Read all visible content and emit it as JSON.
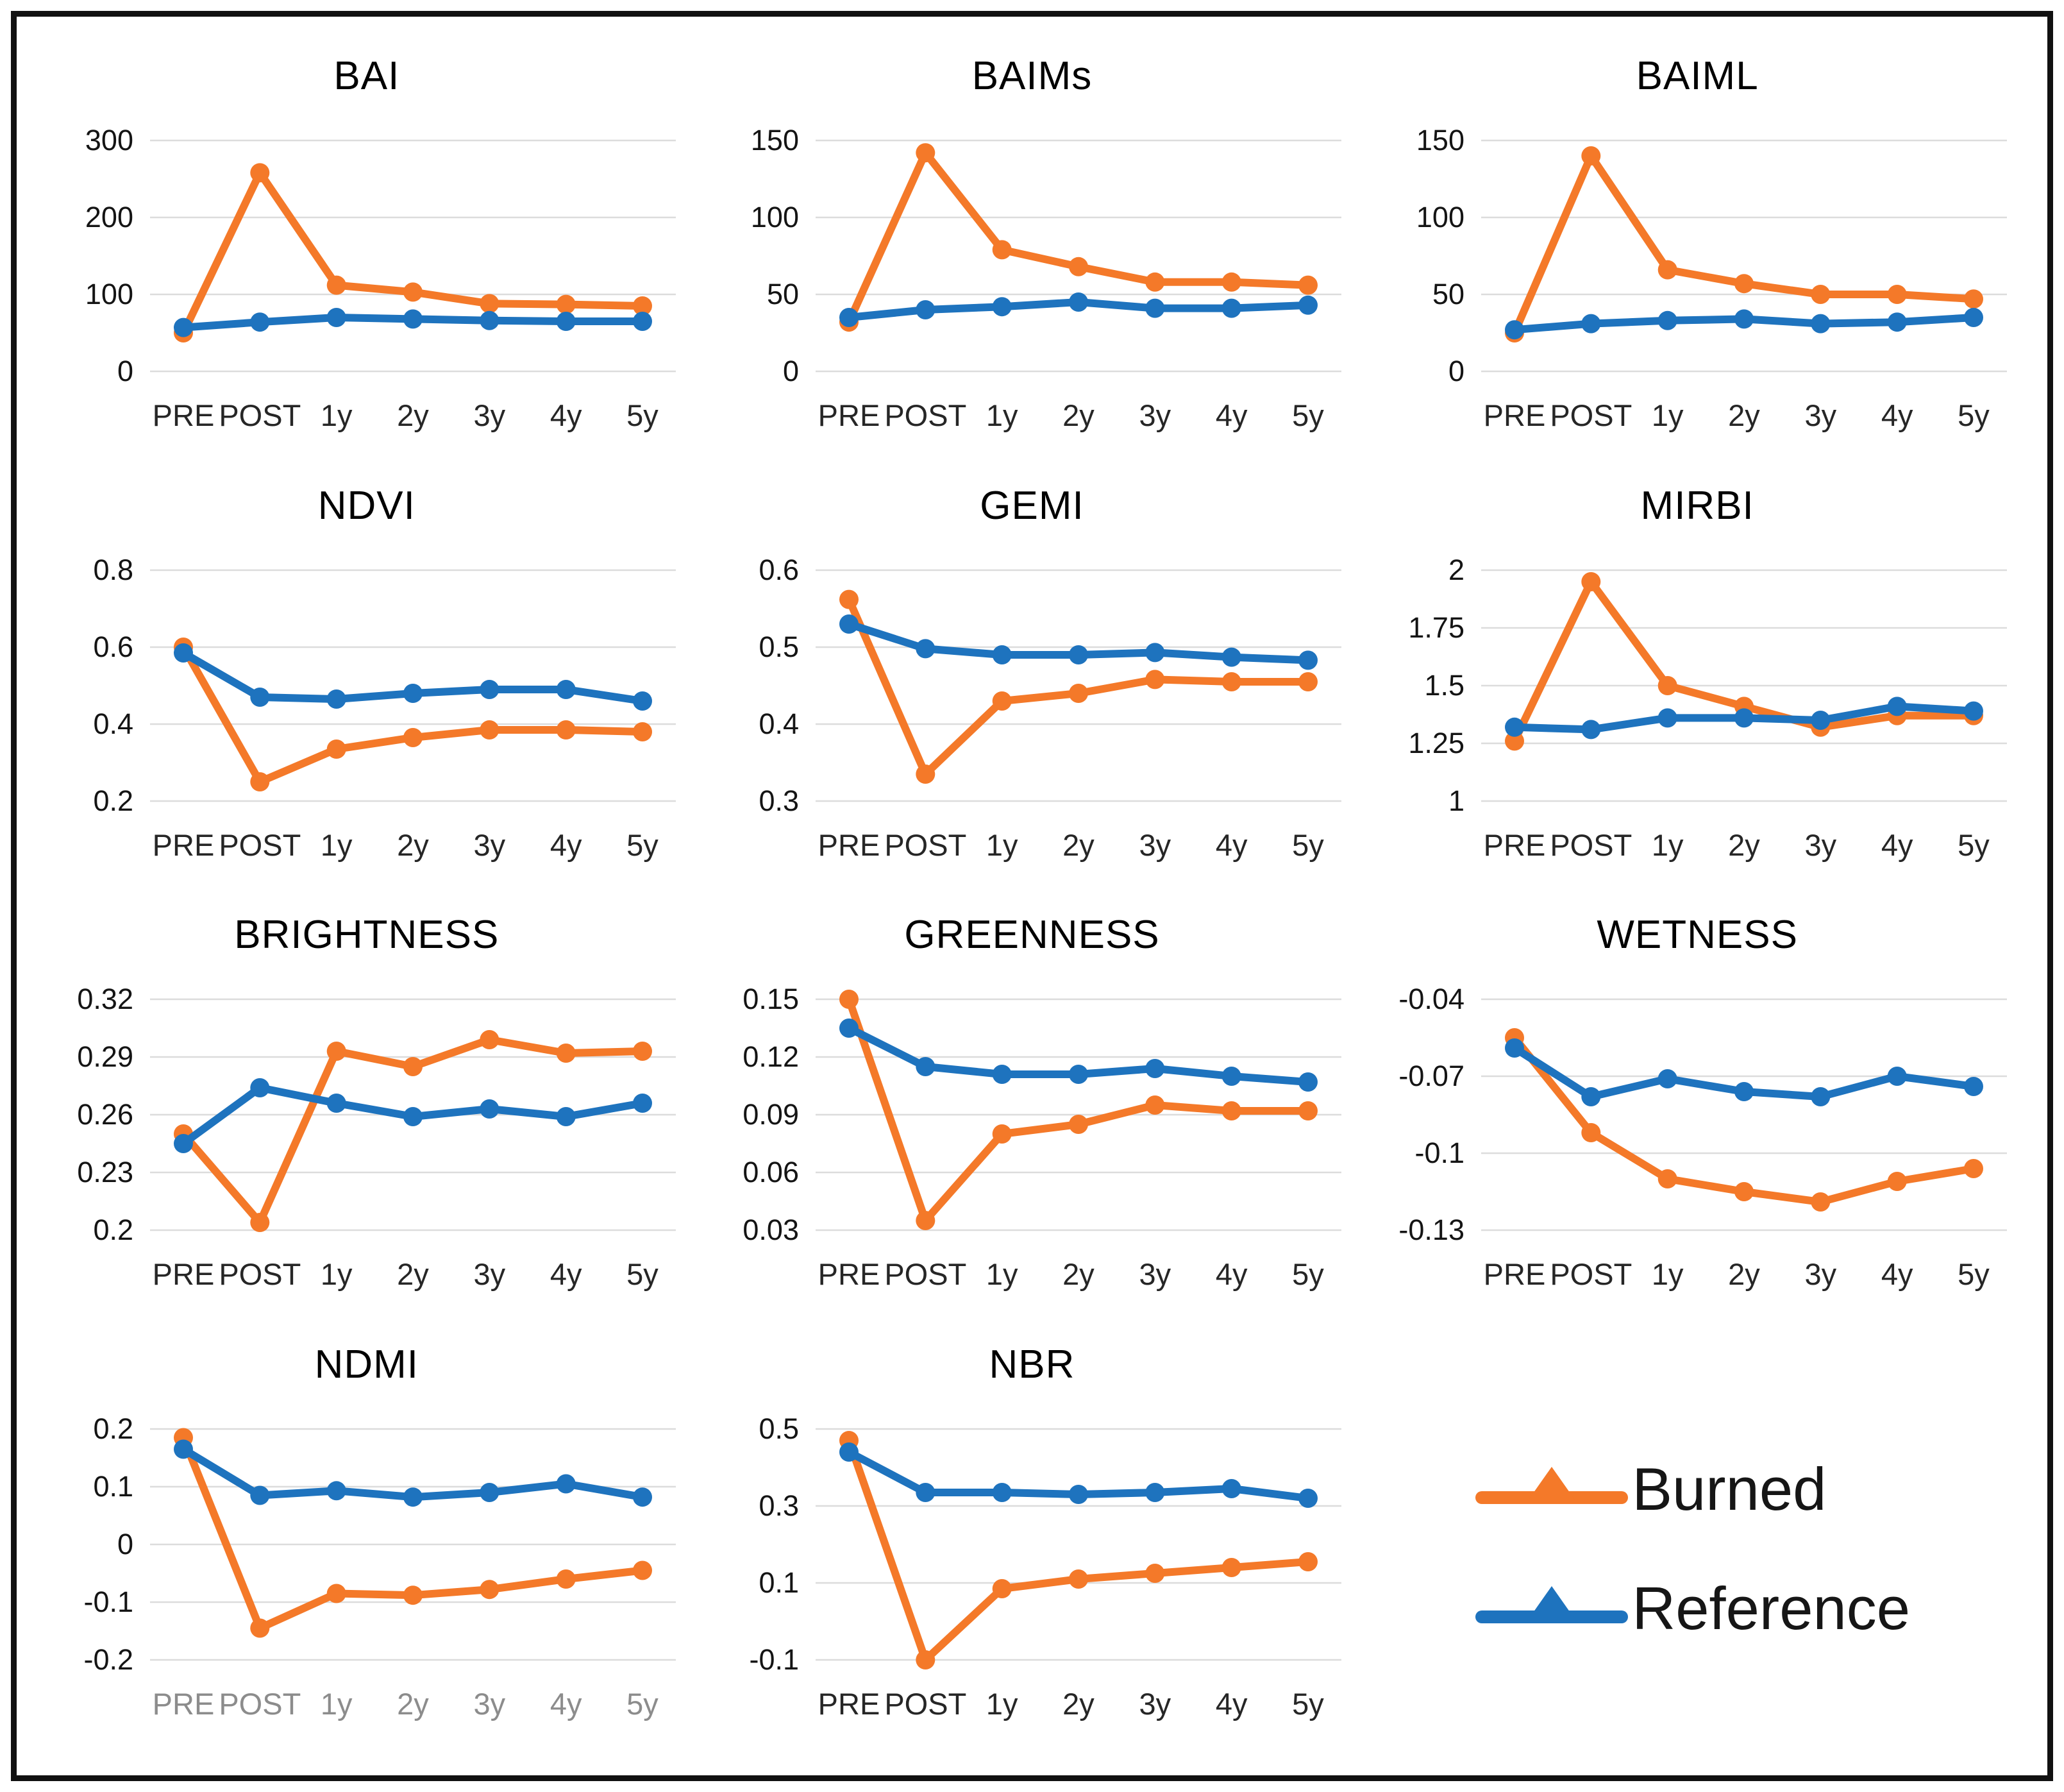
{
  "figure": {
    "description": "Grid of 11 line charts comparing spectral index temporal evolution for Burned vs Reference areas",
    "background_color": "#ffffff",
    "frame_color": "#111111",
    "gridline_color": "#DCDCDC"
  },
  "legend": {
    "position": "bottom-right cell",
    "items": [
      {
        "label": "Burned",
        "color": "#F47929"
      },
      {
        "label": "Reference",
        "color": "#1E73BE"
      }
    ]
  },
  "categories_note": "All charts share the same x-axis categories",
  "chart_data": [
    {
      "type": "line",
      "title": "BAI",
      "categories": [
        "PRE",
        "POST",
        "1y",
        "2y",
        "3y",
        "4y",
        "5y"
      ],
      "y_ticks": [
        0,
        100,
        200,
        300
      ],
      "y_tick_labels": [
        "0",
        "100",
        "200",
        "300"
      ],
      "ylim": [
        0,
        300
      ],
      "x_label_color": "#262626",
      "series": [
        {
          "name": "Burned",
          "values": [
            50,
            258,
            112,
            103,
            88,
            87,
            85
          ]
        },
        {
          "name": "Reference",
          "values": [
            57,
            64,
            70,
            68,
            66,
            65,
            65
          ]
        }
      ]
    },
    {
      "type": "line",
      "title": "BAIMs",
      "categories": [
        "PRE",
        "POST",
        "1y",
        "2y",
        "3y",
        "4y",
        "5y"
      ],
      "y_ticks": [
        0,
        50,
        100,
        150
      ],
      "y_tick_labels": [
        "0",
        "50",
        "100",
        "150"
      ],
      "ylim": [
        0,
        150
      ],
      "x_label_color": "#262626",
      "series": [
        {
          "name": "Burned",
          "values": [
            32,
            142,
            79,
            68,
            58,
            58,
            56
          ]
        },
        {
          "name": "Reference",
          "values": [
            35,
            40,
            42,
            45,
            41,
            41,
            43
          ]
        }
      ]
    },
    {
      "type": "line",
      "title": "BAIML",
      "categories": [
        "PRE",
        "POST",
        "1y",
        "2y",
        "3y",
        "4y",
        "5y"
      ],
      "y_ticks": [
        0,
        50,
        100,
        150
      ],
      "y_tick_labels": [
        "0",
        "50",
        "100",
        "150"
      ],
      "ylim": [
        0,
        150
      ],
      "x_label_color": "#262626",
      "series": [
        {
          "name": "Burned",
          "values": [
            25,
            140,
            66,
            57,
            50,
            50,
            47
          ]
        },
        {
          "name": "Reference",
          "values": [
            27,
            31,
            33,
            34,
            31,
            32,
            35
          ]
        }
      ]
    },
    {
      "type": "line",
      "title": "NDVI",
      "categories": [
        "PRE",
        "POST",
        "1y",
        "2y",
        "3y",
        "4y",
        "5y"
      ],
      "y_ticks": [
        0.2,
        0.4,
        0.6,
        0.8
      ],
      "y_tick_labels": [
        "0.2",
        "0.4",
        "0.6",
        "0.8"
      ],
      "ylim": [
        0.2,
        0.8
      ],
      "x_label_color": "#262626",
      "series": [
        {
          "name": "Burned",
          "values": [
            0.6,
            0.25,
            0.335,
            0.365,
            0.385,
            0.385,
            0.38
          ]
        },
        {
          "name": "Reference",
          "values": [
            0.585,
            0.47,
            0.465,
            0.48,
            0.49,
            0.49,
            0.46
          ]
        }
      ]
    },
    {
      "type": "line",
      "title": "GEMI",
      "categories": [
        "PRE",
        "POST",
        "1y",
        "2y",
        "3y",
        "4y",
        "5y"
      ],
      "y_ticks": [
        0.3,
        0.4,
        0.5,
        0.6
      ],
      "y_tick_labels": [
        "0.3",
        "0.4",
        "0.5",
        "0.6"
      ],
      "ylim": [
        0.3,
        0.6
      ],
      "x_label_color": "#262626",
      "series": [
        {
          "name": "Burned",
          "values": [
            0.562,
            0.335,
            0.43,
            0.44,
            0.458,
            0.455,
            0.455
          ]
        },
        {
          "name": "Reference",
          "values": [
            0.53,
            0.498,
            0.49,
            0.49,
            0.493,
            0.487,
            0.483
          ]
        }
      ]
    },
    {
      "type": "line",
      "title": "MIRBI",
      "categories": [
        "PRE",
        "POST",
        "1y",
        "2y",
        "3y",
        "4y",
        "5y"
      ],
      "y_ticks": [
        1,
        1.25,
        1.5,
        1.75,
        2
      ],
      "y_tick_labels": [
        "1",
        "1.25",
        "1.5",
        "1.75",
        "2"
      ],
      "ylim": [
        1,
        2
      ],
      "x_label_color": "#262626",
      "series": [
        {
          "name": "Burned",
          "values": [
            1.26,
            1.95,
            1.5,
            1.41,
            1.32,
            1.37,
            1.37
          ]
        },
        {
          "name": "Reference",
          "values": [
            1.32,
            1.31,
            1.36,
            1.36,
            1.35,
            1.41,
            1.39
          ]
        }
      ]
    },
    {
      "type": "line",
      "title": "BRIGHTNESS",
      "categories": [
        "PRE",
        "POST",
        "1y",
        "2y",
        "3y",
        "4y",
        "5y"
      ],
      "y_ticks": [
        0.2,
        0.23,
        0.26,
        0.29,
        0.32
      ],
      "y_tick_labels": [
        "0.2",
        "0.23",
        "0.26",
        "0.29",
        "0.32"
      ],
      "ylim": [
        0.2,
        0.32
      ],
      "x_label_color": "#262626",
      "series": [
        {
          "name": "Burned",
          "values": [
            0.25,
            0.204,
            0.293,
            0.285,
            0.299,
            0.292,
            0.293
          ]
        },
        {
          "name": "Reference",
          "values": [
            0.245,
            0.274,
            0.266,
            0.259,
            0.263,
            0.259,
            0.266
          ]
        }
      ]
    },
    {
      "type": "line",
      "title": "GREENNESS",
      "categories": [
        "PRE",
        "POST",
        "1y",
        "2y",
        "3y",
        "4y",
        "5y"
      ],
      "y_ticks": [
        0.03,
        0.06,
        0.09,
        0.12,
        0.15
      ],
      "y_tick_labels": [
        "0.03",
        "0.06",
        "0.09",
        "0.12",
        "0.15"
      ],
      "ylim": [
        0.03,
        0.15
      ],
      "x_label_color": "#262626",
      "series": [
        {
          "name": "Burned",
          "values": [
            0.15,
            0.035,
            0.08,
            0.085,
            0.095,
            0.092,
            0.092
          ]
        },
        {
          "name": "Reference",
          "values": [
            0.135,
            0.115,
            0.111,
            0.111,
            0.114,
            0.11,
            0.107
          ]
        }
      ]
    },
    {
      "type": "line",
      "title": "WETNESS",
      "categories": [
        "PRE",
        "POST",
        "1y",
        "2y",
        "3y",
        "4y",
        "5y"
      ],
      "y_ticks": [
        -0.13,
        -0.1,
        -0.07,
        -0.04
      ],
      "y_tick_labels": [
        "-0.13",
        "-0.1",
        "-0.07",
        "-0.04"
      ],
      "ylim": [
        -0.13,
        -0.04
      ],
      "x_label_color": "#262626",
      "series": [
        {
          "name": "Burned",
          "values": [
            -0.055,
            -0.092,
            -0.11,
            -0.115,
            -0.119,
            -0.111,
            -0.106
          ]
        },
        {
          "name": "Reference",
          "values": [
            -0.059,
            -0.078,
            -0.071,
            -0.076,
            -0.078,
            -0.07,
            -0.074
          ]
        }
      ]
    },
    {
      "type": "line",
      "title": "NDMI",
      "categories": [
        "PRE",
        "POST",
        "1y",
        "2y",
        "3y",
        "4y",
        "5y"
      ],
      "y_ticks": [
        -0.2,
        -0.1,
        0,
        0.1,
        0.2
      ],
      "y_tick_labels": [
        "-0.2",
        "-0.1",
        "0",
        "0.1",
        "0.2"
      ],
      "ylim": [
        -0.2,
        0.2
      ],
      "x_label_color": "#8C8C8C",
      "series": [
        {
          "name": "Burned",
          "values": [
            0.185,
            -0.145,
            -0.085,
            -0.088,
            -0.078,
            -0.06,
            -0.045
          ]
        },
        {
          "name": "Reference",
          "values": [
            0.165,
            0.085,
            0.093,
            0.082,
            0.09,
            0.105,
            0.082
          ]
        }
      ]
    },
    {
      "type": "line",
      "title": "NBR",
      "categories": [
        "PRE",
        "POST",
        "1y",
        "2y",
        "3y",
        "4y",
        "5y"
      ],
      "y_ticks": [
        -0.1,
        0.1,
        0.3,
        0.5
      ],
      "y_tick_labels": [
        "-0.1",
        "0.1",
        "0.3",
        "0.5"
      ],
      "ylim": [
        -0.1,
        0.5
      ],
      "x_label_color": "#262626",
      "series": [
        {
          "name": "Burned",
          "values": [
            0.47,
            -0.1,
            0.085,
            0.11,
            0.125,
            0.14,
            0.155
          ]
        },
        {
          "name": "Reference",
          "values": [
            0.44,
            0.335,
            0.335,
            0.33,
            0.335,
            0.345,
            0.32
          ]
        }
      ]
    }
  ]
}
